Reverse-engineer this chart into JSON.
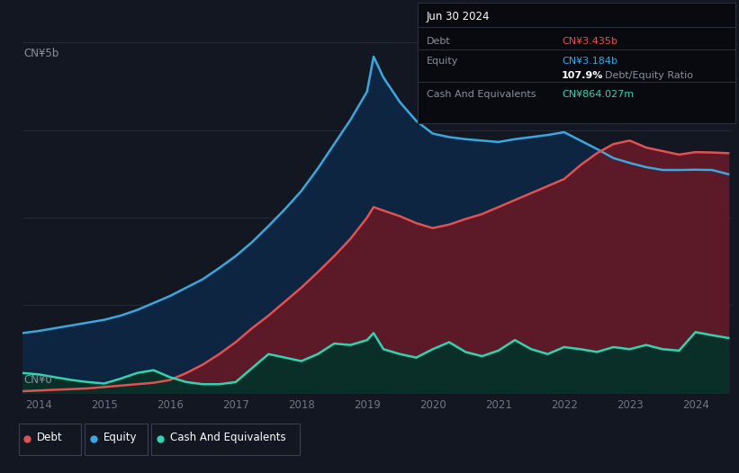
{
  "bg_color": "#131722",
  "plot_bg_color": "#131722",
  "y_label_top": "CN¥5b",
  "y_label_bottom": "CN¥0",
  "x_ticks": [
    2014,
    2015,
    2016,
    2017,
    2018,
    2019,
    2020,
    2021,
    2022,
    2023,
    2024
  ],
  "debt_color": "#e05252",
  "equity_color": "#38a8e0",
  "cash_color": "#30d4b0",
  "debt_fill_color": "#5c1a28",
  "equity_fill_color": "#0d2540",
  "cash_fill_color": "#0a2e28",
  "grid_color": "#272b3a",
  "tooltip_bg": "#080a0f",
  "tooltip_border": "#2a2e3d",
  "tooltip_title": "Jun 30 2024",
  "debt_label": "CN¥3.435b",
  "equity_label": "CN¥3.184b",
  "ratio_text_bold": "107.9%",
  "ratio_text_plain": " Debt/Equity Ratio",
  "cash_label": "CN¥864.027m",
  "debt_color_tt": "#e05252",
  "equity_color_tt": "#38a8e0",
  "cash_color_tt": "#30d4b0",
  "legend_labels": [
    "Debt",
    "Equity",
    "Cash And Equivalents"
  ],
  "legend_colors": [
    "#e05252",
    "#38a8e0",
    "#30d4b0"
  ],
  "years": [
    2013.75,
    2014.0,
    2014.25,
    2014.5,
    2014.75,
    2015.0,
    2015.25,
    2015.5,
    2015.75,
    2016.0,
    2016.25,
    2016.5,
    2016.75,
    2017.0,
    2017.25,
    2017.5,
    2017.75,
    2018.0,
    2018.25,
    2018.5,
    2018.75,
    2019.0,
    2019.1,
    2019.25,
    2019.5,
    2019.75,
    2020.0,
    2020.25,
    2020.5,
    2020.75,
    2021.0,
    2021.25,
    2021.5,
    2021.75,
    2022.0,
    2022.25,
    2022.5,
    2022.75,
    2023.0,
    2023.25,
    2023.5,
    2023.75,
    2024.0,
    2024.25,
    2024.5
  ],
  "debt": [
    0.02,
    0.03,
    0.04,
    0.05,
    0.06,
    0.08,
    0.1,
    0.12,
    0.14,
    0.18,
    0.28,
    0.4,
    0.55,
    0.72,
    0.92,
    1.1,
    1.3,
    1.5,
    1.72,
    1.95,
    2.2,
    2.5,
    2.65,
    2.6,
    2.52,
    2.42,
    2.35,
    2.4,
    2.48,
    2.55,
    2.65,
    2.75,
    2.85,
    2.95,
    3.05,
    3.25,
    3.42,
    3.55,
    3.6,
    3.5,
    3.45,
    3.4,
    3.435,
    3.43,
    3.42
  ],
  "equity": [
    0.85,
    0.88,
    0.92,
    0.96,
    1.0,
    1.04,
    1.1,
    1.18,
    1.28,
    1.38,
    1.5,
    1.62,
    1.78,
    1.95,
    2.15,
    2.38,
    2.62,
    2.88,
    3.2,
    3.55,
    3.9,
    4.3,
    4.8,
    4.5,
    4.15,
    3.88,
    3.7,
    3.65,
    3.62,
    3.6,
    3.58,
    3.62,
    3.65,
    3.68,
    3.72,
    3.6,
    3.48,
    3.35,
    3.28,
    3.22,
    3.18,
    3.18,
    3.184,
    3.18,
    3.12
  ],
  "cash": [
    0.28,
    0.26,
    0.22,
    0.18,
    0.15,
    0.13,
    0.2,
    0.28,
    0.32,
    0.22,
    0.15,
    0.12,
    0.12,
    0.15,
    0.35,
    0.55,
    0.5,
    0.45,
    0.55,
    0.7,
    0.68,
    0.75,
    0.85,
    0.62,
    0.55,
    0.5,
    0.62,
    0.72,
    0.58,
    0.52,
    0.6,
    0.75,
    0.62,
    0.55,
    0.65,
    0.62,
    0.58,
    0.65,
    0.62,
    0.68,
    0.62,
    0.6,
    0.864,
    0.82,
    0.78
  ]
}
